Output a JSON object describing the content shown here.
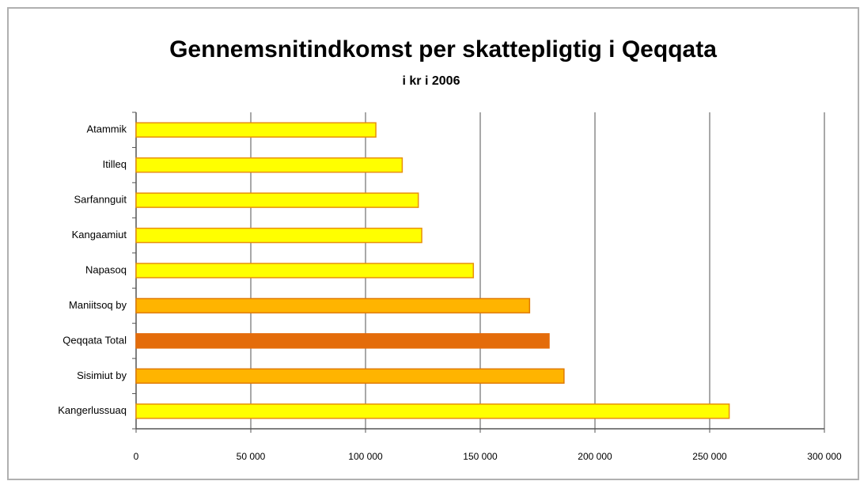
{
  "chart_data": {
    "type": "barh",
    "title": "Gennemsnitindkomst per skattepligtig i Qeqqata",
    "subtitle": "i kr i 2006",
    "categories": [
      "Atammik",
      "Itilleq",
      "Sarfannguit",
      "Kangaamiut",
      "Napasoq",
      "Maniitsoq by",
      "Qeqqata Total",
      "Sisimiut by",
      "Kangerlussuaq"
    ],
    "values": [
      104500,
      116000,
      123000,
      124500,
      147000,
      171500,
      180000,
      186500,
      258500
    ],
    "colors": [
      "#ffff00",
      "#ffff00",
      "#ffff00",
      "#ffff00",
      "#ffff00",
      "#ffb400",
      "#e46c0a",
      "#ffb400",
      "#ffff00"
    ],
    "xlim": [
      0,
      300000
    ],
    "xticks": [
      0,
      {
        "value": 50000,
        "label": "50 000"
      },
      {
        "value": 100000,
        "label": "100 000"
      },
      {
        "value": 150000,
        "label": "150 000"
      },
      {
        "value": 200000,
        "label": "200 000"
      },
      {
        "value": 250000,
        "label": "250 000"
      },
      {
        "value": 300000,
        "label": "300 000"
      }
    ],
    "grid": true
  }
}
